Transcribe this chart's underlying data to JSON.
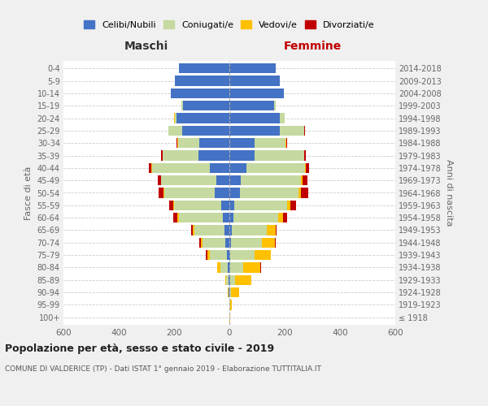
{
  "age_groups": [
    "100+",
    "95-99",
    "90-94",
    "85-89",
    "80-84",
    "75-79",
    "70-74",
    "65-69",
    "60-64",
    "55-59",
    "50-54",
    "45-49",
    "40-44",
    "35-39",
    "30-34",
    "25-29",
    "20-24",
    "15-19",
    "10-14",
    "5-9",
    "0-4"
  ],
  "birth_years": [
    "≤ 1918",
    "1919-1923",
    "1924-1928",
    "1929-1933",
    "1934-1938",
    "1939-1943",
    "1944-1948",
    "1949-1953",
    "1954-1958",
    "1959-1963",
    "1964-1968",
    "1969-1973",
    "1974-1978",
    "1979-1983",
    "1984-1988",
    "1989-1993",
    "1994-1998",
    "1999-2003",
    "2004-2008",
    "2009-2013",
    "2014-2018"
  ],
  "colors": {
    "celibi": "#4472c4",
    "coniugati": "#c5d9a0",
    "vedovi": "#ffc000",
    "divorziati": "#c00000"
  },
  "maschi": {
    "celibi": [
      0,
      0,
      2,
      3,
      5,
      8,
      14,
      18,
      25,
      28,
      52,
      48,
      72,
      112,
      108,
      172,
      192,
      168,
      212,
      198,
      182
    ],
    "coniugati": [
      0,
      0,
      2,
      8,
      28,
      62,
      82,
      108,
      158,
      172,
      182,
      198,
      208,
      128,
      78,
      48,
      6,
      5,
      0,
      0,
      0
    ],
    "vedovi": [
      0,
      0,
      2,
      5,
      10,
      10,
      8,
      5,
      5,
      3,
      3,
      2,
      2,
      2,
      2,
      1,
      1,
      0,
      0,
      0,
      0
    ],
    "divorziati": [
      0,
      0,
      0,
      0,
      2,
      4,
      4,
      6,
      16,
      14,
      18,
      12,
      8,
      5,
      2,
      1,
      0,
      0,
      0,
      0,
      0
    ]
  },
  "femmine": {
    "celibi": [
      0,
      0,
      1,
      2,
      2,
      3,
      5,
      8,
      14,
      18,
      38,
      42,
      62,
      92,
      92,
      182,
      182,
      162,
      198,
      182,
      168
    ],
    "coniugati": [
      0,
      2,
      5,
      18,
      48,
      88,
      112,
      128,
      162,
      192,
      212,
      218,
      212,
      178,
      112,
      88,
      18,
      5,
      0,
      0,
      0
    ],
    "vedovi": [
      2,
      8,
      28,
      58,
      62,
      58,
      48,
      32,
      18,
      12,
      8,
      5,
      3,
      2,
      2,
      1,
      0,
      0,
      0,
      0,
      0
    ],
    "divorziati": [
      0,
      0,
      0,
      2,
      2,
      2,
      4,
      4,
      14,
      18,
      28,
      18,
      10,
      5,
      4,
      2,
      0,
      0,
      0,
      0,
      0
    ]
  },
  "xlim": 600,
  "title": "Popolazione per età, sesso e stato civile - 2019",
  "subtitle": "COMUNE DI VALDERICE (TP) - Dati ISTAT 1° gennaio 2019 - Elaborazione TUTTITALIA.IT",
  "ylabel_left": "Fasce di età",
  "ylabel_right": "Anni di nascita",
  "xlabel_maschi": "Maschi",
  "xlabel_femmine": "Femmine",
  "legend_labels": [
    "Celibi/Nubili",
    "Coniugati/e",
    "Vedovi/e",
    "Divorziati/e"
  ],
  "background_color": "#f0f0f0",
  "plot_background": "#ffffff",
  "grid_color": "#cccccc"
}
